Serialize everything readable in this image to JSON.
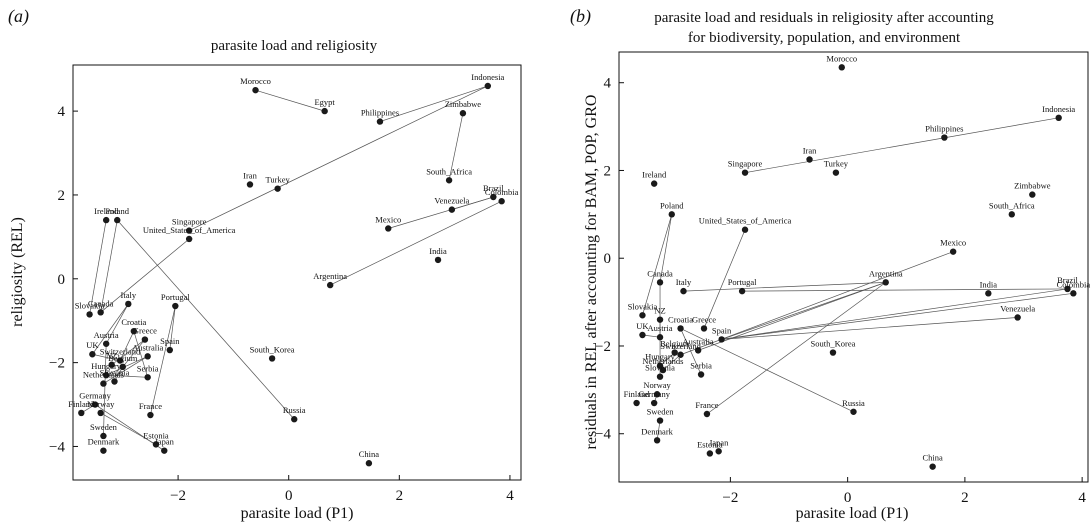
{
  "panels": [
    {
      "label": "(a)",
      "title": [
        "parasite load and religiosity"
      ],
      "xlabel": "parasite load (P1)",
      "ylabel": "religiosity (REL)",
      "x_ticks": [
        -2,
        0,
        2,
        4
      ],
      "y_ticks": [
        -4,
        -2,
        0,
        2,
        4
      ]
    },
    {
      "label": "(b)",
      "title": [
        "parasite load and residuals in religiosity after accounting",
        "for biodiversity, population, and environment"
      ],
      "xlabel": "parasite load (P1)",
      "ylabel": "residuals in REL after accounting for BAM, POP, GRO",
      "x_ticks": [
        -2,
        0,
        2,
        4
      ],
      "y_ticks": [
        -4,
        -2,
        0,
        2,
        4
      ]
    }
  ],
  "chart_data": [
    {
      "type": "scatter",
      "title": "parasite load and religiosity",
      "xlabel": "parasite load (P1)",
      "ylabel": "religiosity (REL)",
      "xlim": [
        -3.9,
        4.2
      ],
      "ylim": [
        -4.8,
        5.1
      ],
      "points": [
        {
          "name": "Morocco",
          "x": -0.6,
          "y": 4.5
        },
        {
          "name": "Egypt",
          "x": 0.65,
          "y": 4.0
        },
        {
          "name": "Indonesia",
          "x": 3.6,
          "y": 4.6
        },
        {
          "name": "Philippines",
          "x": 1.65,
          "y": 3.75
        },
        {
          "name": "Zimbabwe",
          "x": 3.15,
          "y": 3.95
        },
        {
          "name": "Iran",
          "x": -0.7,
          "y": 2.25
        },
        {
          "name": "Turkey",
          "x": -0.2,
          "y": 2.15
        },
        {
          "name": "South_Africa",
          "x": 2.9,
          "y": 2.35
        },
        {
          "name": "Brazil",
          "x": 3.7,
          "y": 1.95
        },
        {
          "name": "Colombia",
          "x": 3.85,
          "y": 1.85
        },
        {
          "name": "Venezuela",
          "x": 2.95,
          "y": 1.65
        },
        {
          "name": "Mexico",
          "x": 1.8,
          "y": 1.2
        },
        {
          "name": "Ireland",
          "x": -3.3,
          "y": 1.4
        },
        {
          "name": "Poland",
          "x": -3.1,
          "y": 1.4
        },
        {
          "name": "Singapore",
          "x": -1.8,
          "y": 1.15
        },
        {
          "name": "United_States_of_America",
          "x": -1.8,
          "y": 0.95
        },
        {
          "name": "India",
          "x": 2.7,
          "y": 0.45
        },
        {
          "name": "Argentina",
          "x": 0.75,
          "y": -0.15
        },
        {
          "name": "Canada",
          "x": -3.4,
          "y": -0.8
        },
        {
          "name": "Slovakia",
          "x": -3.6,
          "y": -0.85
        },
        {
          "name": "Italy",
          "x": -2.9,
          "y": -0.6
        },
        {
          "name": "Portugal",
          "x": -2.05,
          "y": -0.65
        },
        {
          "name": "Croatia",
          "x": -2.8,
          "y": -1.25
        },
        {
          "name": "Greece",
          "x": -2.6,
          "y": -1.45
        },
        {
          "name": "Austria",
          "x": -3.3,
          "y": -1.55
        },
        {
          "name": "Spain",
          "x": -2.15,
          "y": -1.7
        },
        {
          "name": "UK",
          "x": -3.55,
          "y": -1.8
        },
        {
          "name": "Australia",
          "x": -2.55,
          "y": -1.85
        },
        {
          "name": "South_Korea",
          "x": -0.3,
          "y": -1.9
        },
        {
          "name": "Switzerland",
          "x": -3.05,
          "y": -1.95
        },
        {
          "name": "NZ",
          "x": -3.2,
          "y": -2.05
        },
        {
          "name": "Belgium",
          "x": -3.0,
          "y": -2.1
        },
        {
          "name": "Hungary",
          "x": -3.3,
          "y": -2.3
        },
        {
          "name": "Serbia",
          "x": -2.55,
          "y": -2.35
        },
        {
          "name": "Slovenia",
          "x": -3.15,
          "y": -2.45
        },
        {
          "name": "Netherlands",
          "x": -3.35,
          "y": -2.5
        },
        {
          "name": "Germany",
          "x": -3.5,
          "y": -3.0
        },
        {
          "name": "Finland",
          "x": -3.75,
          "y": -3.2
        },
        {
          "name": "Norway",
          "x": -3.4,
          "y": -3.2
        },
        {
          "name": "France",
          "x": -2.5,
          "y": -3.25
        },
        {
          "name": "Russia",
          "x": 0.1,
          "y": -3.35
        },
        {
          "name": "Sweden",
          "x": -3.35,
          "y": -3.75
        },
        {
          "name": "Estonia",
          "x": -2.4,
          "y": -3.95
        },
        {
          "name": "Denmark",
          "x": -3.35,
          "y": -4.1
        },
        {
          "name": "Japan",
          "x": -2.25,
          "y": -4.1
        },
        {
          "name": "China",
          "x": 1.45,
          "y": -4.4
        }
      ],
      "links": [
        [
          "Morocco",
          "Egypt"
        ],
        [
          "Indonesia",
          "Singapore"
        ],
        [
          "Indonesia",
          "Philippines"
        ],
        [
          "Zimbabwe",
          "South_Africa"
        ],
        [
          "Brazil",
          "Venezuela"
        ],
        [
          "Brazil",
          "Mexico"
        ],
        [
          "Colombia",
          "Argentina"
        ],
        [
          "United_States_of_America",
          "Canada"
        ],
        [
          "Ireland",
          "Slovakia"
        ],
        [
          "Poland",
          "Canada"
        ],
        [
          "Poland",
          "Russia"
        ],
        [
          "Italy",
          "Austria"
        ],
        [
          "Italy",
          "UK"
        ],
        [
          "Portugal",
          "Spain"
        ],
        [
          "Portugal",
          "France"
        ],
        [
          "Croatia",
          "Serbia"
        ],
        [
          "Croatia",
          "Switzerland"
        ],
        [
          "Greece",
          "NZ"
        ],
        [
          "Greece",
          "Belgium"
        ],
        [
          "Austria",
          "Sweden"
        ],
        [
          "Australia",
          "Netherlands"
        ],
        [
          "Australia",
          "Hungary"
        ],
        [
          "Hungary",
          "Serbia"
        ],
        [
          "Germany",
          "Japan"
        ],
        [
          "Norway",
          "Estonia"
        ],
        [
          "Finland",
          "Germany"
        ],
        [
          "UK",
          "Switzerland"
        ],
        [
          "Slovenia",
          "Belgium"
        ]
      ]
    },
    {
      "type": "scatter",
      "title": "parasite load and residuals in religiosity after accounting for biodiversity, population, and environment",
      "xlabel": "parasite load (P1)",
      "ylabel": "residuals in REL after accounting for BAM, POP, GRO",
      "xlim": [
        -3.9,
        4.1
      ],
      "ylim": [
        -5.1,
        4.7
      ],
      "points": [
        {
          "name": "Morocco",
          "x": -0.1,
          "y": 4.35
        },
        {
          "name": "Indonesia",
          "x": 3.6,
          "y": 3.2
        },
        {
          "name": "Philippines",
          "x": 1.65,
          "y": 2.75
        },
        {
          "name": "Iran",
          "x": -0.65,
          "y": 2.25
        },
        {
          "name": "Singapore",
          "x": -1.75,
          "y": 1.95
        },
        {
          "name": "Turkey",
          "x": -0.2,
          "y": 1.95
        },
        {
          "name": "Ireland",
          "x": -3.3,
          "y": 1.7
        },
        {
          "name": "Zimbabwe",
          "x": 3.15,
          "y": 1.45
        },
        {
          "name": "South_Africa",
          "x": 2.8,
          "y": 1.0
        },
        {
          "name": "Poland",
          "x": -3.0,
          "y": 1.0
        },
        {
          "name": "United_States_of_America",
          "x": -1.75,
          "y": 0.65
        },
        {
          "name": "Mexico",
          "x": 1.8,
          "y": 0.15
        },
        {
          "name": "Canada",
          "x": -3.2,
          "y": -0.55
        },
        {
          "name": "Argentina",
          "x": 0.65,
          "y": -0.55
        },
        {
          "name": "Brazil",
          "x": 3.75,
          "y": -0.7
        },
        {
          "name": "Colombia",
          "x": 3.85,
          "y": -0.8
        },
        {
          "name": "Italy",
          "x": -2.8,
          "y": -0.75
        },
        {
          "name": "Portugal",
          "x": -1.8,
          "y": -0.75
        },
        {
          "name": "India",
          "x": 2.4,
          "y": -0.8
        },
        {
          "name": "Slovakia",
          "x": -3.5,
          "y": -1.3
        },
        {
          "name": "NZ",
          "x": -3.2,
          "y": -1.4
        },
        {
          "name": "Venezuela",
          "x": 2.9,
          "y": -1.35
        },
        {
          "name": "Croatia",
          "x": -2.85,
          "y": -1.6
        },
        {
          "name": "Greece",
          "x": -2.45,
          "y": -1.6
        },
        {
          "name": "UK",
          "x": -3.5,
          "y": -1.75
        },
        {
          "name": "Austria",
          "x": -3.2,
          "y": -1.8
        },
        {
          "name": "Spain",
          "x": -2.15,
          "y": -1.85
        },
        {
          "name": "Belgium",
          "x": -2.95,
          "y": -2.15
        },
        {
          "name": "Australia",
          "x": -2.55,
          "y": -2.1
        },
        {
          "name": "South_Korea",
          "x": -0.25,
          "y": -2.15
        },
        {
          "name": "Switzerland",
          "x": -2.85,
          "y": -2.2
        },
        {
          "name": "Hungary",
          "x": -3.2,
          "y": -2.45
        },
        {
          "name": "Netherlands",
          "x": -3.15,
          "y": -2.55
        },
        {
          "name": "Slovenia",
          "x": -3.2,
          "y": -2.7
        },
        {
          "name": "Serbia",
          "x": -2.5,
          "y": -2.65
        },
        {
          "name": "Norway",
          "x": -3.25,
          "y": -3.1
        },
        {
          "name": "Finland",
          "x": -3.6,
          "y": -3.3
        },
        {
          "name": "Germany",
          "x": -3.3,
          "y": -3.3
        },
        {
          "name": "France",
          "x": -2.4,
          "y": -3.55
        },
        {
          "name": "Russia",
          "x": 0.1,
          "y": -3.5
        },
        {
          "name": "Sweden",
          "x": -3.2,
          "y": -3.7
        },
        {
          "name": "Denmark",
          "x": -3.25,
          "y": -4.15
        },
        {
          "name": "Estonia",
          "x": -2.35,
          "y": -4.45
        },
        {
          "name": "Japan",
          "x": -2.2,
          "y": -4.4
        },
        {
          "name": "China",
          "x": 1.45,
          "y": -4.75
        }
      ],
      "links": [
        [
          "Indonesia",
          "Singapore"
        ],
        [
          "Poland",
          "Canada"
        ],
        [
          "Poland",
          "Slovakia"
        ],
        [
          "United_States_of_America",
          "Greece"
        ],
        [
          "Mexico",
          "Switzerland"
        ],
        [
          "Argentina",
          "Spain"
        ],
        [
          "Argentina",
          "Australia"
        ],
        [
          "Argentina",
          "France"
        ],
        [
          "Argentina",
          "Italy"
        ],
        [
          "Brazil",
          "Spain"
        ],
        [
          "Brazil",
          "Portugal"
        ],
        [
          "Colombia",
          "Spain"
        ],
        [
          "Venezuela",
          "Spain"
        ],
        [
          "Russia",
          "Croatia"
        ],
        [
          "Austria",
          "Canada"
        ],
        [
          "Croatia",
          "Serbia"
        ],
        [
          "UK",
          "Austria"
        ],
        [
          "NZ",
          "Slovenia"
        ],
        [
          "Belgium",
          "Hungary"
        ],
        [
          "Netherlands",
          "Switzerland"
        ],
        [
          "Germany",
          "Norway"
        ],
        [
          "Sweden",
          "Denmark"
        ]
      ]
    }
  ]
}
